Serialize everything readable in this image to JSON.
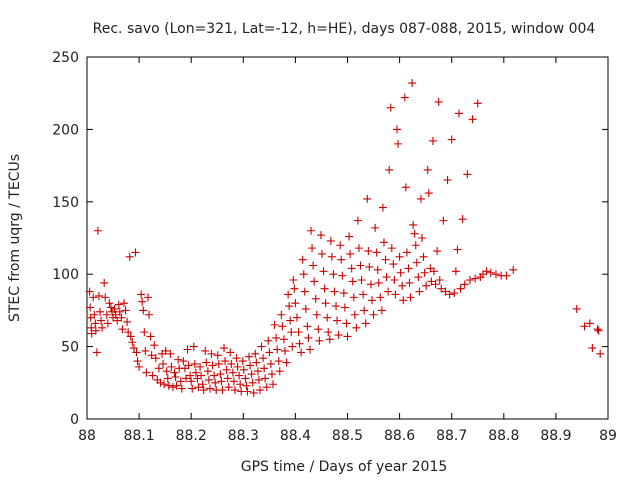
{
  "chart_data": {
    "type": "scatter",
    "title": "Rec. savo (Lon=321, Lat=-12, h=HE), days 087-088, 2015, window 004",
    "xlabel": "GPS time / Days of year 2015",
    "ylabel": "STEC from uqrg / TECUs",
    "xlim": [
      88,
      89
    ],
    "ylim": [
      0,
      250
    ],
    "xticks": [
      88,
      88.1,
      88.2,
      88.3,
      88.4,
      88.5,
      88.6,
      88.7,
      88.8,
      88.9,
      89
    ],
    "xtick_labels": [
      "88",
      "88.1",
      "88.2",
      "88.3",
      "88.4",
      "88.5",
      "88.6",
      "88.7",
      "88.8",
      "88.9",
      "89"
    ],
    "yticks": [
      0,
      50,
      100,
      150,
      200,
      250
    ],
    "ytick_labels": [
      "0",
      "50",
      "100",
      "150",
      "200",
      "250"
    ],
    "grid": false,
    "marker": "+",
    "color": "#cc0000",
    "series": [
      {
        "points": [
          [
            88.005,
            88
          ],
          [
            88.006,
            77
          ],
          [
            88.007,
            70
          ],
          [
            88.008,
            63
          ],
          [
            88.009,
            59
          ],
          [
            88.012,
            84
          ],
          [
            88.014,
            72
          ],
          [
            88.016,
            66
          ],
          [
            88.017,
            61
          ],
          [
            88.019,
            46
          ],
          [
            88.021,
            130
          ],
          [
            88.023,
            85
          ],
          [
            88.025,
            74
          ],
          [
            88.027,
            68
          ],
          [
            88.029,
            63
          ],
          [
            88.033,
            94
          ],
          [
            88.035,
            84
          ],
          [
            88.038,
            72
          ],
          [
            88.04,
            66
          ],
          [
            88.043,
            80
          ],
          [
            88.046,
            77
          ],
          [
            88.048,
            74
          ],
          [
            88.05,
            70
          ],
          [
            88.053,
            76
          ],
          [
            88.055,
            72
          ],
          [
            88.058,
            68
          ],
          [
            88.061,
            79
          ],
          [
            88.063,
            74
          ],
          [
            88.066,
            70
          ],
          [
            88.068,
            62
          ],
          [
            88.071,
            80
          ],
          [
            88.074,
            75
          ],
          [
            88.077,
            67
          ],
          [
            88.079,
            60
          ],
          [
            88.082,
            112
          ],
          [
            88.084,
            57
          ],
          [
            88.087,
            53
          ],
          [
            88.09,
            49
          ],
          [
            88.093,
            115
          ],
          [
            88.095,
            46
          ],
          [
            88.097,
            40
          ],
          [
            88.1,
            36
          ],
          [
            88.104,
            86
          ],
          [
            88.106,
            81
          ],
          [
            88.108,
            75
          ],
          [
            88.11,
            60
          ],
          [
            88.112,
            47
          ],
          [
            88.114,
            32
          ],
          [
            88.117,
            84
          ],
          [
            88.119,
            72
          ],
          [
            88.122,
            57
          ],
          [
            88.124,
            44
          ],
          [
            88.126,
            30
          ],
          [
            88.129,
            51
          ],
          [
            88.132,
            42
          ],
          [
            88.135,
            27
          ],
          [
            88.138,
            35
          ],
          [
            88.141,
            25
          ],
          [
            88.144,
            45
          ],
          [
            88.146,
            38
          ],
          [
            88.148,
            24
          ],
          [
            88.151,
            47
          ],
          [
            88.153,
            33
          ],
          [
            88.155,
            28
          ],
          [
            88.157,
            23
          ],
          [
            88.16,
            45
          ],
          [
            88.162,
            36
          ],
          [
            88.165,
            22
          ],
          [
            88.168,
            32
          ],
          [
            88.17,
            29
          ],
          [
            88.172,
            23
          ],
          [
            88.175,
            41
          ],
          [
            88.177,
            35
          ],
          [
            88.18,
            26
          ],
          [
            88.182,
            21
          ],
          [
            88.185,
            40
          ],
          [
            88.188,
            35
          ],
          [
            88.19,
            28
          ],
          [
            88.193,
            48
          ],
          [
            88.195,
            37
          ],
          [
            88.198,
            30
          ],
          [
            88.2,
            26
          ],
          [
            88.202,
            21
          ],
          [
            88.205,
            50
          ],
          [
            88.207,
            38
          ],
          [
            88.209,
            32
          ],
          [
            88.212,
            28
          ],
          [
            88.214,
            22
          ],
          [
            88.217,
            36
          ],
          [
            88.219,
            30
          ],
          [
            88.222,
            24
          ],
          [
            88.224,
            20
          ],
          [
            88.227,
            47
          ],
          [
            88.229,
            39
          ],
          [
            88.232,
            33
          ],
          [
            88.234,
            27
          ],
          [
            88.236,
            21
          ],
          [
            88.239,
            45
          ],
          [
            88.241,
            37
          ],
          [
            88.244,
            30
          ],
          [
            88.246,
            25
          ],
          [
            88.248,
            20
          ],
          [
            88.251,
            44
          ],
          [
            88.253,
            38
          ],
          [
            88.256,
            31
          ],
          [
            88.258,
            26
          ],
          [
            88.26,
            20
          ],
          [
            88.263,
            49
          ],
          [
            88.265,
            40
          ],
          [
            88.268,
            34
          ],
          [
            88.27,
            28
          ],
          [
            88.272,
            22
          ],
          [
            88.275,
            46
          ],
          [
            88.277,
            38
          ],
          [
            88.28,
            32
          ],
          [
            88.282,
            26
          ],
          [
            88.284,
            20
          ],
          [
            88.287,
            42
          ],
          [
            88.289,
            36
          ],
          [
            88.292,
            30
          ],
          [
            88.294,
            24
          ],
          [
            88.296,
            19
          ],
          [
            88.299,
            40
          ],
          [
            88.301,
            34
          ],
          [
            88.304,
            28
          ],
          [
            88.306,
            23
          ],
          [
            88.308,
            19
          ],
          [
            88.311,
            43
          ],
          [
            88.313,
            37
          ],
          [
            88.316,
            31
          ],
          [
            88.318,
            25
          ],
          [
            88.32,
            18
          ],
          [
            88.323,
            45
          ],
          [
            88.325,
            39
          ],
          [
            88.328,
            33
          ],
          [
            88.33,
            27
          ],
          [
            88.332,
            20
          ],
          [
            88.335,
            50
          ],
          [
            88.338,
            42
          ],
          [
            88.34,
            35
          ],
          [
            88.342,
            28
          ],
          [
            88.345,
            22
          ],
          [
            88.348,
            54
          ],
          [
            88.35,
            46
          ],
          [
            88.353,
            38
          ],
          [
            88.355,
            31
          ],
          [
            88.357,
            24
          ],
          [
            88.36,
            65
          ],
          [
            88.363,
            56
          ],
          [
            88.365,
            48
          ],
          [
            88.368,
            40
          ],
          [
            88.37,
            33
          ],
          [
            88.373,
            72
          ],
          [
            88.375,
            64
          ],
          [
            88.378,
            55
          ],
          [
            88.38,
            47
          ],
          [
            88.383,
            39
          ],
          [
            88.386,
            86
          ],
          [
            88.388,
            78
          ],
          [
            88.39,
            68
          ],
          [
            88.392,
            60
          ],
          [
            88.394,
            50
          ],
          [
            88.396,
            96
          ],
          [
            88.398,
            90
          ],
          [
            88.4,
            80
          ],
          [
            88.403,
            70
          ],
          [
            88.406,
            60
          ],
          [
            88.408,
            52
          ],
          [
            88.411,
            46
          ],
          [
            88.414,
            110
          ],
          [
            88.416,
            100
          ],
          [
            88.418,
            88
          ],
          [
            88.42,
            76
          ],
          [
            88.423,
            64
          ],
          [
            88.425,
            56
          ],
          [
            88.428,
            48
          ],
          [
            88.43,
            130
          ],
          [
            88.432,
            118
          ],
          [
            88.434,
            106
          ],
          [
            88.436,
            95
          ],
          [
            88.439,
            83
          ],
          [
            88.441,
            72
          ],
          [
            88.444,
            62
          ],
          [
            88.446,
            54
          ],
          [
            88.449,
            127
          ],
          [
            88.451,
            114
          ],
          [
            88.454,
            102
          ],
          [
            88.456,
            90
          ],
          [
            88.458,
            80
          ],
          [
            88.461,
            70
          ],
          [
            88.463,
            60
          ],
          [
            88.466,
            55
          ],
          [
            88.468,
            123
          ],
          [
            88.47,
            112
          ],
          [
            88.473,
            100
          ],
          [
            88.475,
            88
          ],
          [
            88.478,
            78
          ],
          [
            88.48,
            68
          ],
          [
            88.483,
            58
          ],
          [
            88.486,
            120
          ],
          [
            88.488,
            110
          ],
          [
            88.49,
            99
          ],
          [
            88.493,
            87
          ],
          [
            88.495,
            77
          ],
          [
            88.498,
            66
          ],
          [
            88.5,
            57
          ],
          [
            88.503,
            126
          ],
          [
            88.505,
            114
          ],
          [
            88.508,
            104
          ],
          [
            88.51,
            95
          ],
          [
            88.512,
            84
          ],
          [
            88.514,
            72
          ],
          [
            88.517,
            63
          ],
          [
            88.52,
            137
          ],
          [
            88.522,
            118
          ],
          [
            88.525,
            106
          ],
          [
            88.527,
            96
          ],
          [
            88.53,
            86
          ],
          [
            88.532,
            75
          ],
          [
            88.535,
            66
          ],
          [
            88.538,
            152
          ],
          [
            88.54,
            116
          ],
          [
            88.542,
            105
          ],
          [
            88.545,
            93
          ],
          [
            88.547,
            82
          ],
          [
            88.55,
            72
          ],
          [
            88.553,
            132
          ],
          [
            88.556,
            115
          ],
          [
            88.558,
            103
          ],
          [
            88.56,
            94
          ],
          [
            88.563,
            84
          ],
          [
            88.566,
            75
          ],
          [
            88.568,
            146
          ],
          [
            88.57,
            122
          ],
          [
            88.573,
            110
          ],
          [
            88.575,
            98
          ],
          [
            88.578,
            88
          ],
          [
            88.58,
            172
          ],
          [
            88.583,
            215
          ],
          [
            88.585,
            118
          ],
          [
            88.588,
            107
          ],
          [
            88.59,
            96
          ],
          [
            88.592,
            86
          ],
          [
            88.595,
            200
          ],
          [
            88.597,
            190
          ],
          [
            88.6,
            112
          ],
          [
            88.602,
            101
          ],
          [
            88.605,
            92
          ],
          [
            88.607,
            82
          ],
          [
            88.61,
            222
          ],
          [
            88.612,
            160
          ],
          [
            88.614,
            115
          ],
          [
            88.617,
            104
          ],
          [
            88.619,
            94
          ],
          [
            88.621,
            84
          ],
          [
            88.624,
            232
          ],
          [
            88.626,
            134
          ],
          [
            88.629,
            128
          ],
          [
            88.631,
            120
          ],
          [
            88.633,
            108
          ],
          [
            88.636,
            98
          ],
          [
            88.638,
            88
          ],
          [
            88.641,
            152
          ],
          [
            88.643,
            125
          ],
          [
            88.646,
            112
          ],
          [
            88.648,
            101
          ],
          [
            88.651,
            92
          ],
          [
            88.654,
            172
          ],
          [
            88.656,
            156
          ],
          [
            88.659,
            104
          ],
          [
            88.661,
            95
          ],
          [
            88.664,
            192
          ],
          [
            88.666,
            102
          ],
          [
            88.669,
            93
          ],
          [
            88.672,
            116
          ],
          [
            88.675,
            219
          ],
          [
            88.677,
            96
          ],
          [
            88.68,
            90
          ],
          [
            88.684,
            137
          ],
          [
            88.688,
            88
          ],
          [
            88.692,
            165
          ],
          [
            88.696,
            86
          ],
          [
            88.7,
            193
          ],
          [
            88.705,
            87
          ],
          [
            88.708,
            102
          ],
          [
            88.711,
            117
          ],
          [
            88.714,
            211
          ],
          [
            88.717,
            90
          ],
          [
            88.721,
            138
          ],
          [
            88.725,
            93
          ],
          [
            88.73,
            169
          ],
          [
            88.735,
            96
          ],
          [
            88.74,
            207
          ],
          [
            88.745,
            97
          ],
          [
            88.75,
            218
          ],
          [
            88.755,
            98
          ],
          [
            88.76,
            100
          ],
          [
            88.767,
            102
          ],
          [
            88.775,
            101
          ],
          [
            88.785,
            100
          ],
          [
            88.795,
            99
          ],
          [
            88.805,
            99
          ],
          [
            88.818,
            103
          ],
          [
            88.94,
            76
          ],
          [
            88.955,
            64
          ],
          [
            88.965,
            66
          ],
          [
            88.97,
            49
          ],
          [
            88.98,
            62
          ],
          [
            88.982,
            61
          ],
          [
            88.985,
            45
          ]
        ]
      }
    ]
  }
}
